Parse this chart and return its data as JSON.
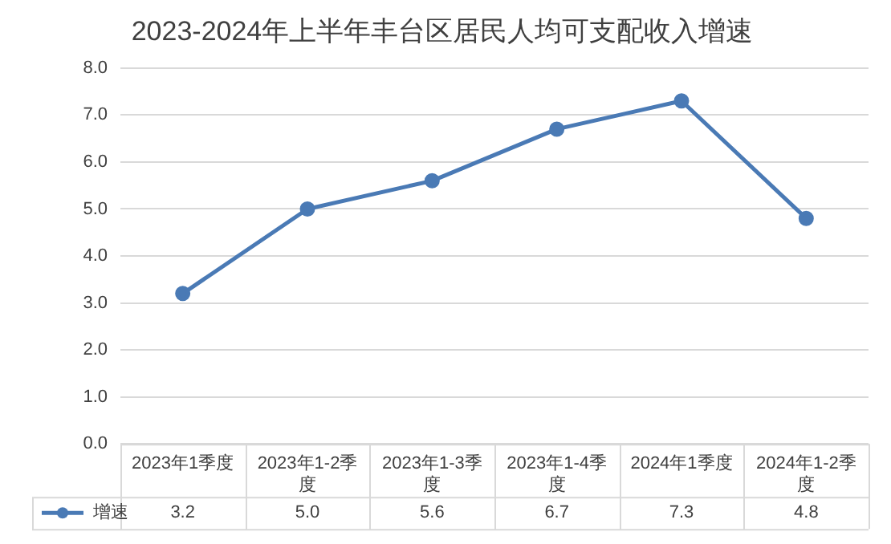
{
  "chart_data": {
    "type": "line",
    "title": "2023-2024年上半年丰台区居民人均可支配收入增速",
    "categories": [
      "2023年1季度",
      "2023年1-2季度",
      "2023年1-3季度",
      "2023年1-4季度",
      "2024年1季度",
      "2024年1-2季度"
    ],
    "series": [
      {
        "name": "增速",
        "color": "#4a7ab5",
        "values": [
          3.2,
          5.0,
          5.6,
          6.7,
          7.3,
          4.8
        ],
        "value_labels": [
          "3.2",
          "5.0",
          "5.6",
          "6.7",
          "7.3",
          "4.8"
        ]
      }
    ],
    "ylim": [
      0,
      8
    ],
    "yticks": [
      {
        "value": 0,
        "label": "0.0"
      },
      {
        "value": 1,
        "label": "1.0"
      },
      {
        "value": 2,
        "label": "2.0"
      },
      {
        "value": 3,
        "label": "3.0"
      },
      {
        "value": 4,
        "label": "4.0"
      },
      {
        "value": 5,
        "label": "5.0"
      },
      {
        "value": 6,
        "label": "6.0"
      },
      {
        "value": 7,
        "label": "7.0"
      },
      {
        "value": 8,
        "label": "8.0"
      }
    ],
    "grid": "y",
    "legend": "bottom left",
    "marker": "circle",
    "line_style": "solid"
  }
}
